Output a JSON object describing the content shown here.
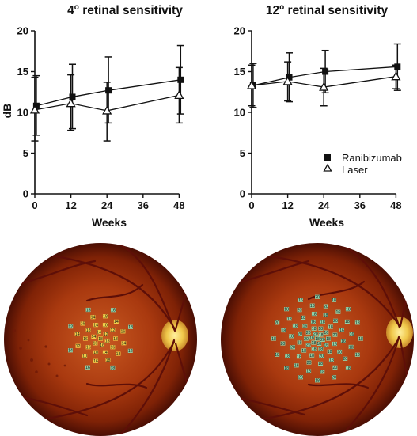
{
  "chart_data": [
    {
      "type": "line",
      "title": "4° retinal sensitivity",
      "title_base": "4",
      "title_deg": "o",
      "title_rest": " retinal sensitivity",
      "xlabel": "Weeks",
      "ylabel": "dB",
      "x_ticks": [
        0,
        12,
        24,
        36,
        48
      ],
      "y_ticks": [
        0,
        5,
        10,
        15,
        20
      ],
      "xlim": [
        0,
        50
      ],
      "ylim": [
        0,
        20
      ],
      "grid": false,
      "legend": false,
      "series": [
        {
          "name": "Ranibizumab",
          "marker": "filled-square",
          "points": [
            {
              "x": 0.5,
              "y": 10.8,
              "err_low": 7.2,
              "err_high": 14.5
            },
            {
              "x": 12.5,
              "y": 11.9,
              "err_low": 8.0,
              "err_high": 15.9
            },
            {
              "x": 24.5,
              "y": 12.7,
              "err_low": 8.7,
              "err_high": 16.8
            },
            {
              "x": 48.5,
              "y": 14.0,
              "err_low": 9.8,
              "err_high": 18.2
            }
          ]
        },
        {
          "name": "Laser",
          "marker": "open-triangle",
          "points": [
            {
              "x": 0,
              "y": 10.3,
              "err_low": 6.5,
              "err_high": 14.3
            },
            {
              "x": 12,
              "y": 11.1,
              "err_low": 7.8,
              "err_high": 14.6
            },
            {
              "x": 24,
              "y": 10.2,
              "err_low": 6.5,
              "err_high": 13.7
            },
            {
              "x": 48,
              "y": 12.1,
              "err_low": 8.7,
              "err_high": 15.5
            }
          ]
        }
      ]
    },
    {
      "type": "line",
      "title": "12° retinal sensitivity",
      "title_base": "12",
      "title_deg": "o",
      "title_rest": " retinal sensitivity",
      "xlabel": "Weeks",
      "ylabel": "",
      "x_ticks": [
        0,
        12,
        24,
        36,
        48
      ],
      "y_ticks": [
        0,
        5,
        10,
        15,
        20
      ],
      "xlim": [
        0,
        50
      ],
      "ylim": [
        0,
        20
      ],
      "grid": false,
      "legend": "right",
      "series": [
        {
          "name": "Ranibizumab",
          "marker": "filled-square",
          "points": [
            {
              "x": 0.5,
              "y": 13.3,
              "err_low": 10.6,
              "err_high": 16.0
            },
            {
              "x": 12.5,
              "y": 14.3,
              "err_low": 11.3,
              "err_high": 17.3
            },
            {
              "x": 24.5,
              "y": 15.0,
              "err_low": 12.4,
              "err_high": 17.6
            },
            {
              "x": 48.5,
              "y": 15.6,
              "err_low": 12.7,
              "err_high": 18.4
            }
          ]
        },
        {
          "name": "Laser",
          "marker": "open-triangle",
          "points": [
            {
              "x": 0,
              "y": 13.3,
              "err_low": 10.8,
              "err_high": 15.8
            },
            {
              "x": 12,
              "y": 13.8,
              "err_low": 11.4,
              "err_high": 16.2
            },
            {
              "x": 24,
              "y": 13.1,
              "err_low": 10.8,
              "err_high": 15.4
            },
            {
              "x": 48,
              "y": 14.4,
              "err_low": 12.9,
              "err_high": 15.8
            }
          ]
        }
      ]
    }
  ],
  "fundus_images": [
    {
      "name": "4-degree fundus microperimetry",
      "sensitivity_values": [
        "18",
        "18",
        "16",
        "16",
        "14",
        "14",
        "12",
        "18",
        "16",
        "14",
        "10",
        "16",
        "16",
        "18",
        "14",
        "10",
        "12",
        "14",
        "18",
        "18",
        "16",
        "10",
        "12",
        "14",
        "16",
        "14",
        "18",
        "14",
        "16",
        "12",
        "18",
        "16",
        "14",
        "12",
        "18",
        "16",
        "18"
      ]
    },
    {
      "name": "12-degree fundus microperimetry",
      "sensitivity_values": [
        "18",
        "20",
        "18",
        "18",
        "16",
        "20",
        "18",
        "18",
        "16",
        "18",
        "18",
        "20",
        "20",
        "20",
        "18",
        "18",
        "16",
        "16",
        "18",
        "20",
        "18",
        "18",
        "18",
        "20",
        "16",
        "16",
        "18",
        "18",
        "20",
        "16",
        "20",
        "18",
        "18",
        "20",
        "18",
        "20",
        "18",
        "18",
        "18",
        "18",
        "18",
        "20",
        "16",
        "18",
        "20",
        "20",
        "18",
        "18",
        "16",
        "18",
        "20",
        "18",
        "18",
        "20",
        "18",
        "20",
        "16",
        "18",
        "16",
        "18",
        "18",
        "18",
        "20",
        "18",
        "20",
        "18",
        "18",
        "18",
        "20",
        "18",
        "16",
        "20",
        "18",
        "18",
        "18"
      ]
    }
  ],
  "colors": {
    "ink": "#111111",
    "fundus_outer": "#4a0e04",
    "fundus_mid": "#a4320f",
    "fundus_center": "#c8501a",
    "disc": "#f0c84a",
    "vessel": "#5e0f08",
    "point_green": "#8ee0b8",
    "point_yellow": "#f6dc50"
  }
}
